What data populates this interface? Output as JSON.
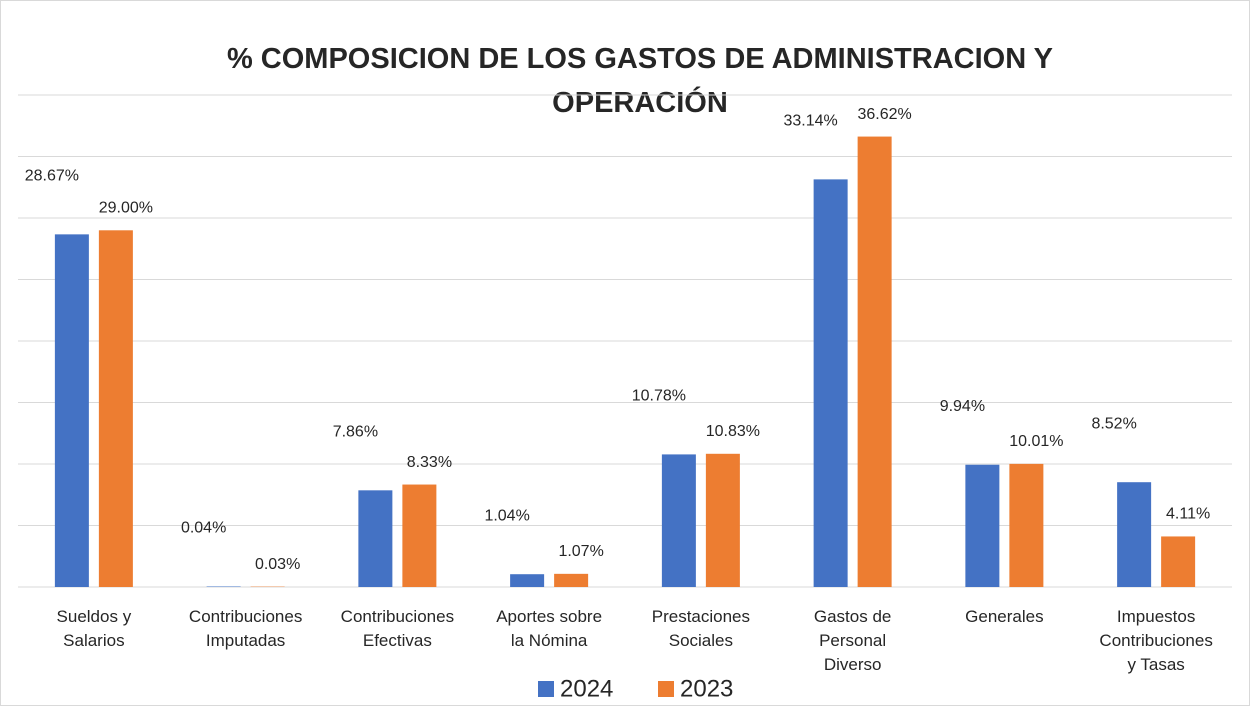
{
  "chart_data": {
    "type": "bar",
    "title": "% COMPOSICION DE LOS GASTOS DE ADMINISTRACION Y OPERACIÓN",
    "categories": [
      "Sueldos y Salarios",
      "Contribuciones Imputadas",
      "Contribuciones Efectivas",
      "Aportes sobre la Nómina",
      "Prestaciones Sociales",
      "Gastos de Personal Diverso",
      "Generales",
      "Impuestos Contribuciones y Tasas"
    ],
    "series": [
      {
        "name": "2024",
        "color": "#4472c4",
        "values": [
          28.67,
          0.04,
          7.86,
          1.04,
          10.78,
          33.14,
          9.94,
          8.52
        ],
        "value_labels": [
          "28.67%",
          "0.04%",
          "7.86%",
          "1.04%",
          "10.78%",
          "33.14%",
          "9.94%",
          "8.52%"
        ]
      },
      {
        "name": "2023",
        "color": "#ed7d31",
        "values": [
          29.0,
          0.03,
          8.33,
          1.07,
          10.83,
          36.62,
          10.01,
          4.11
        ],
        "value_labels": [
          "29.00%",
          "0.03%",
          "8.33%",
          "1.07%",
          "10.83%",
          "36.62%",
          "10.01%",
          "4.11%"
        ]
      }
    ],
    "ylim": [
      0,
      40
    ],
    "yticks": [
      0,
      5,
      10,
      15,
      20,
      25,
      30,
      35,
      40
    ],
    "grid": true,
    "legend": "bottom"
  }
}
